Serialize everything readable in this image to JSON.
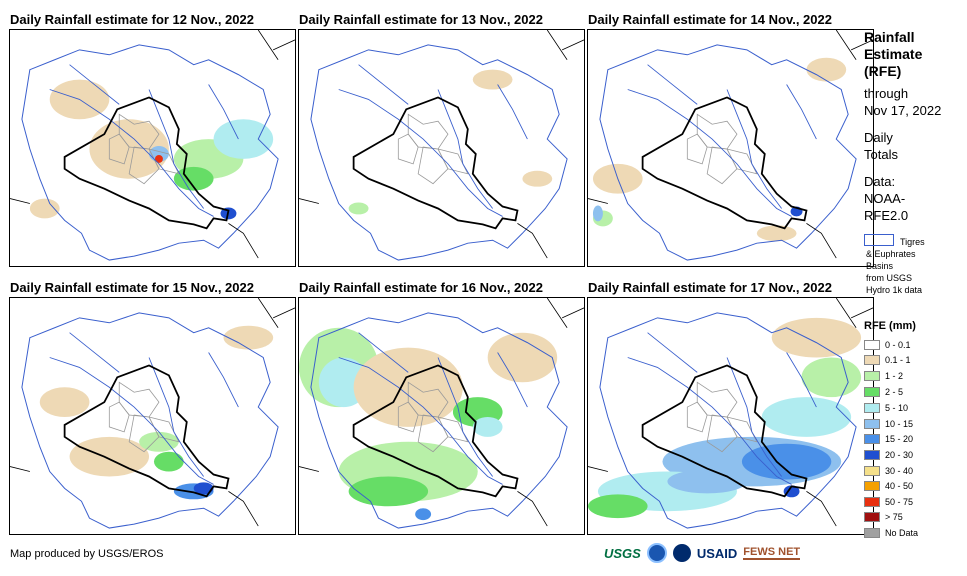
{
  "panels": [
    {
      "title": "Daily Rainfall estimate for 12 Nov., 2022",
      "key": "d12"
    },
    {
      "title": "Daily Rainfall estimate for 13 Nov., 2022",
      "key": "d13"
    },
    {
      "title": "Daily Rainfall estimate for 14 Nov., 2022",
      "key": "d14"
    },
    {
      "title": "Daily Rainfall estimate for 15 Nov., 2022",
      "key": "d15"
    },
    {
      "title": "Daily Rainfall estimate for 16 Nov., 2022",
      "key": "d16"
    },
    {
      "title": "Daily Rainfall estimate for 17 Nov., 2022",
      "key": "d17"
    }
  ],
  "sidebar": {
    "heading_1": "Rainfall",
    "heading_2": "Estimate",
    "heading_3": "(RFE)",
    "through": "through",
    "date": "Nov 17, 2022",
    "daily_1": "Daily",
    "daily_2": "Totals",
    "data_1": "Data:",
    "data_2": "NOAA-",
    "data_3": "RFE2.0",
    "basin_1": "Tigres",
    "basin_2": "& Euphrates",
    "basin_3": "Basins",
    "basin_4": "from USGS",
    "basin_5": "Hydro 1k data",
    "legend_title": "RFE (mm)"
  },
  "legend": [
    {
      "label": "0 - 0.1",
      "color": "#ffffff"
    },
    {
      "label": "0.1 - 1",
      "color": "#eed9b5"
    },
    {
      "label": "1 - 2",
      "color": "#b8f0a8"
    },
    {
      "label": "2 - 5",
      "color": "#66dd66"
    },
    {
      "label": "5 - 10",
      "color": "#b0ecf0"
    },
    {
      "label": "10 - 15",
      "color": "#8ec0ee"
    },
    {
      "label": "15 - 20",
      "color": "#4a90e8"
    },
    {
      "label": "20 - 30",
      "color": "#1f4fd0"
    },
    {
      "label": "30 - 40",
      "color": "#f5e08a"
    },
    {
      "label": "40 - 50",
      "color": "#f5a000"
    },
    {
      "label": "50 - 75",
      "color": "#e83010"
    },
    {
      "label": "> 75",
      "color": "#a01010"
    },
    {
      "label": "No Data",
      "color": "#a0a0a0"
    }
  ],
  "footer": {
    "credit": "Map produced by USGS/EROS"
  },
  "logos": {
    "usgs": "USGS",
    "noaa": "NOAA",
    "usaid": "USAID",
    "fewsnet": "FEWS NET"
  }
}
